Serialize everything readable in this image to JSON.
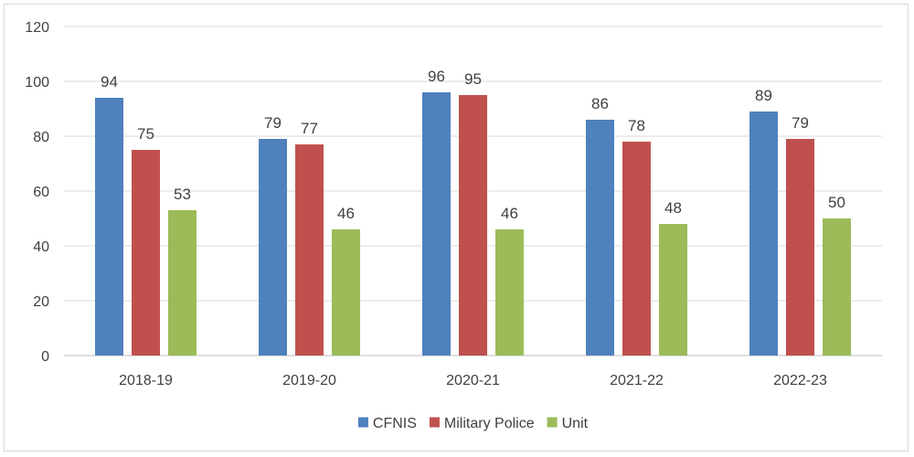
{
  "chart_data": {
    "type": "bar",
    "title": "",
    "xlabel": "",
    "ylabel": "",
    "categories": [
      "2018-19",
      "2019-20",
      "2020-21",
      "2021-22",
      "2022-23"
    ],
    "series": [
      {
        "name": "CFNIS",
        "color": "#4f81bd",
        "values": [
          94,
          79,
          96,
          86,
          89
        ]
      },
      {
        "name": "Military Police",
        "color": "#c0504d",
        "values": [
          75,
          77,
          95,
          78,
          79
        ]
      },
      {
        "name": "Unit",
        "color": "#9bbb59",
        "values": [
          53,
          46,
          46,
          48,
          50
        ]
      }
    ],
    "ylim": [
      0,
      120
    ],
    "yticks": [
      0,
      20,
      40,
      60,
      80,
      100,
      120
    ],
    "yticks_labels": [
      "0",
      "20",
      "40",
      "60",
      "80",
      "100",
      "120"
    ],
    "grid": true,
    "legend_position": "bottom",
    "data_labels": true
  }
}
